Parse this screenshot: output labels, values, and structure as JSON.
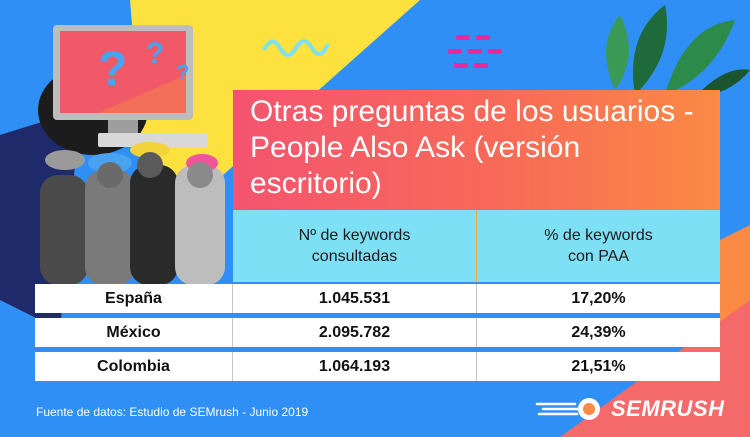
{
  "title": "Otras preguntas de los usuarios - People Also Ask (versión escritorio)",
  "table": {
    "headers": [
      "Nº de keywords\nconsultadas",
      "% de keywords\ncon PAA"
    ],
    "rows": [
      {
        "country": "España",
        "keywords": "1.045.531",
        "paa": "17,20%"
      },
      {
        "country": "México",
        "keywords": "2.095.782",
        "paa": "24,39%"
      },
      {
        "country": "Colombia",
        "keywords": "1.064.193",
        "paa": "21,51%"
      }
    ]
  },
  "footer": "Fuente de datos: Estudio de SEMrush - Junio 2019",
  "logo": {
    "text": "SEMRUSH",
    "icon": "semrush-fireball-icon"
  },
  "colors": {
    "background": "#2f8ff5",
    "title_gradient_start": "#f4546f",
    "title_gradient_end": "#fb8a44",
    "header_row": "#7ee0f5",
    "yellow_shape": "#fde23f",
    "orange_shape": "#fb8a44"
  },
  "decorations": [
    "computer-illustration",
    "question-marks",
    "crowd-photo",
    "wavy-line",
    "pink-dashes",
    "leaves",
    "yellow-triangle"
  ]
}
